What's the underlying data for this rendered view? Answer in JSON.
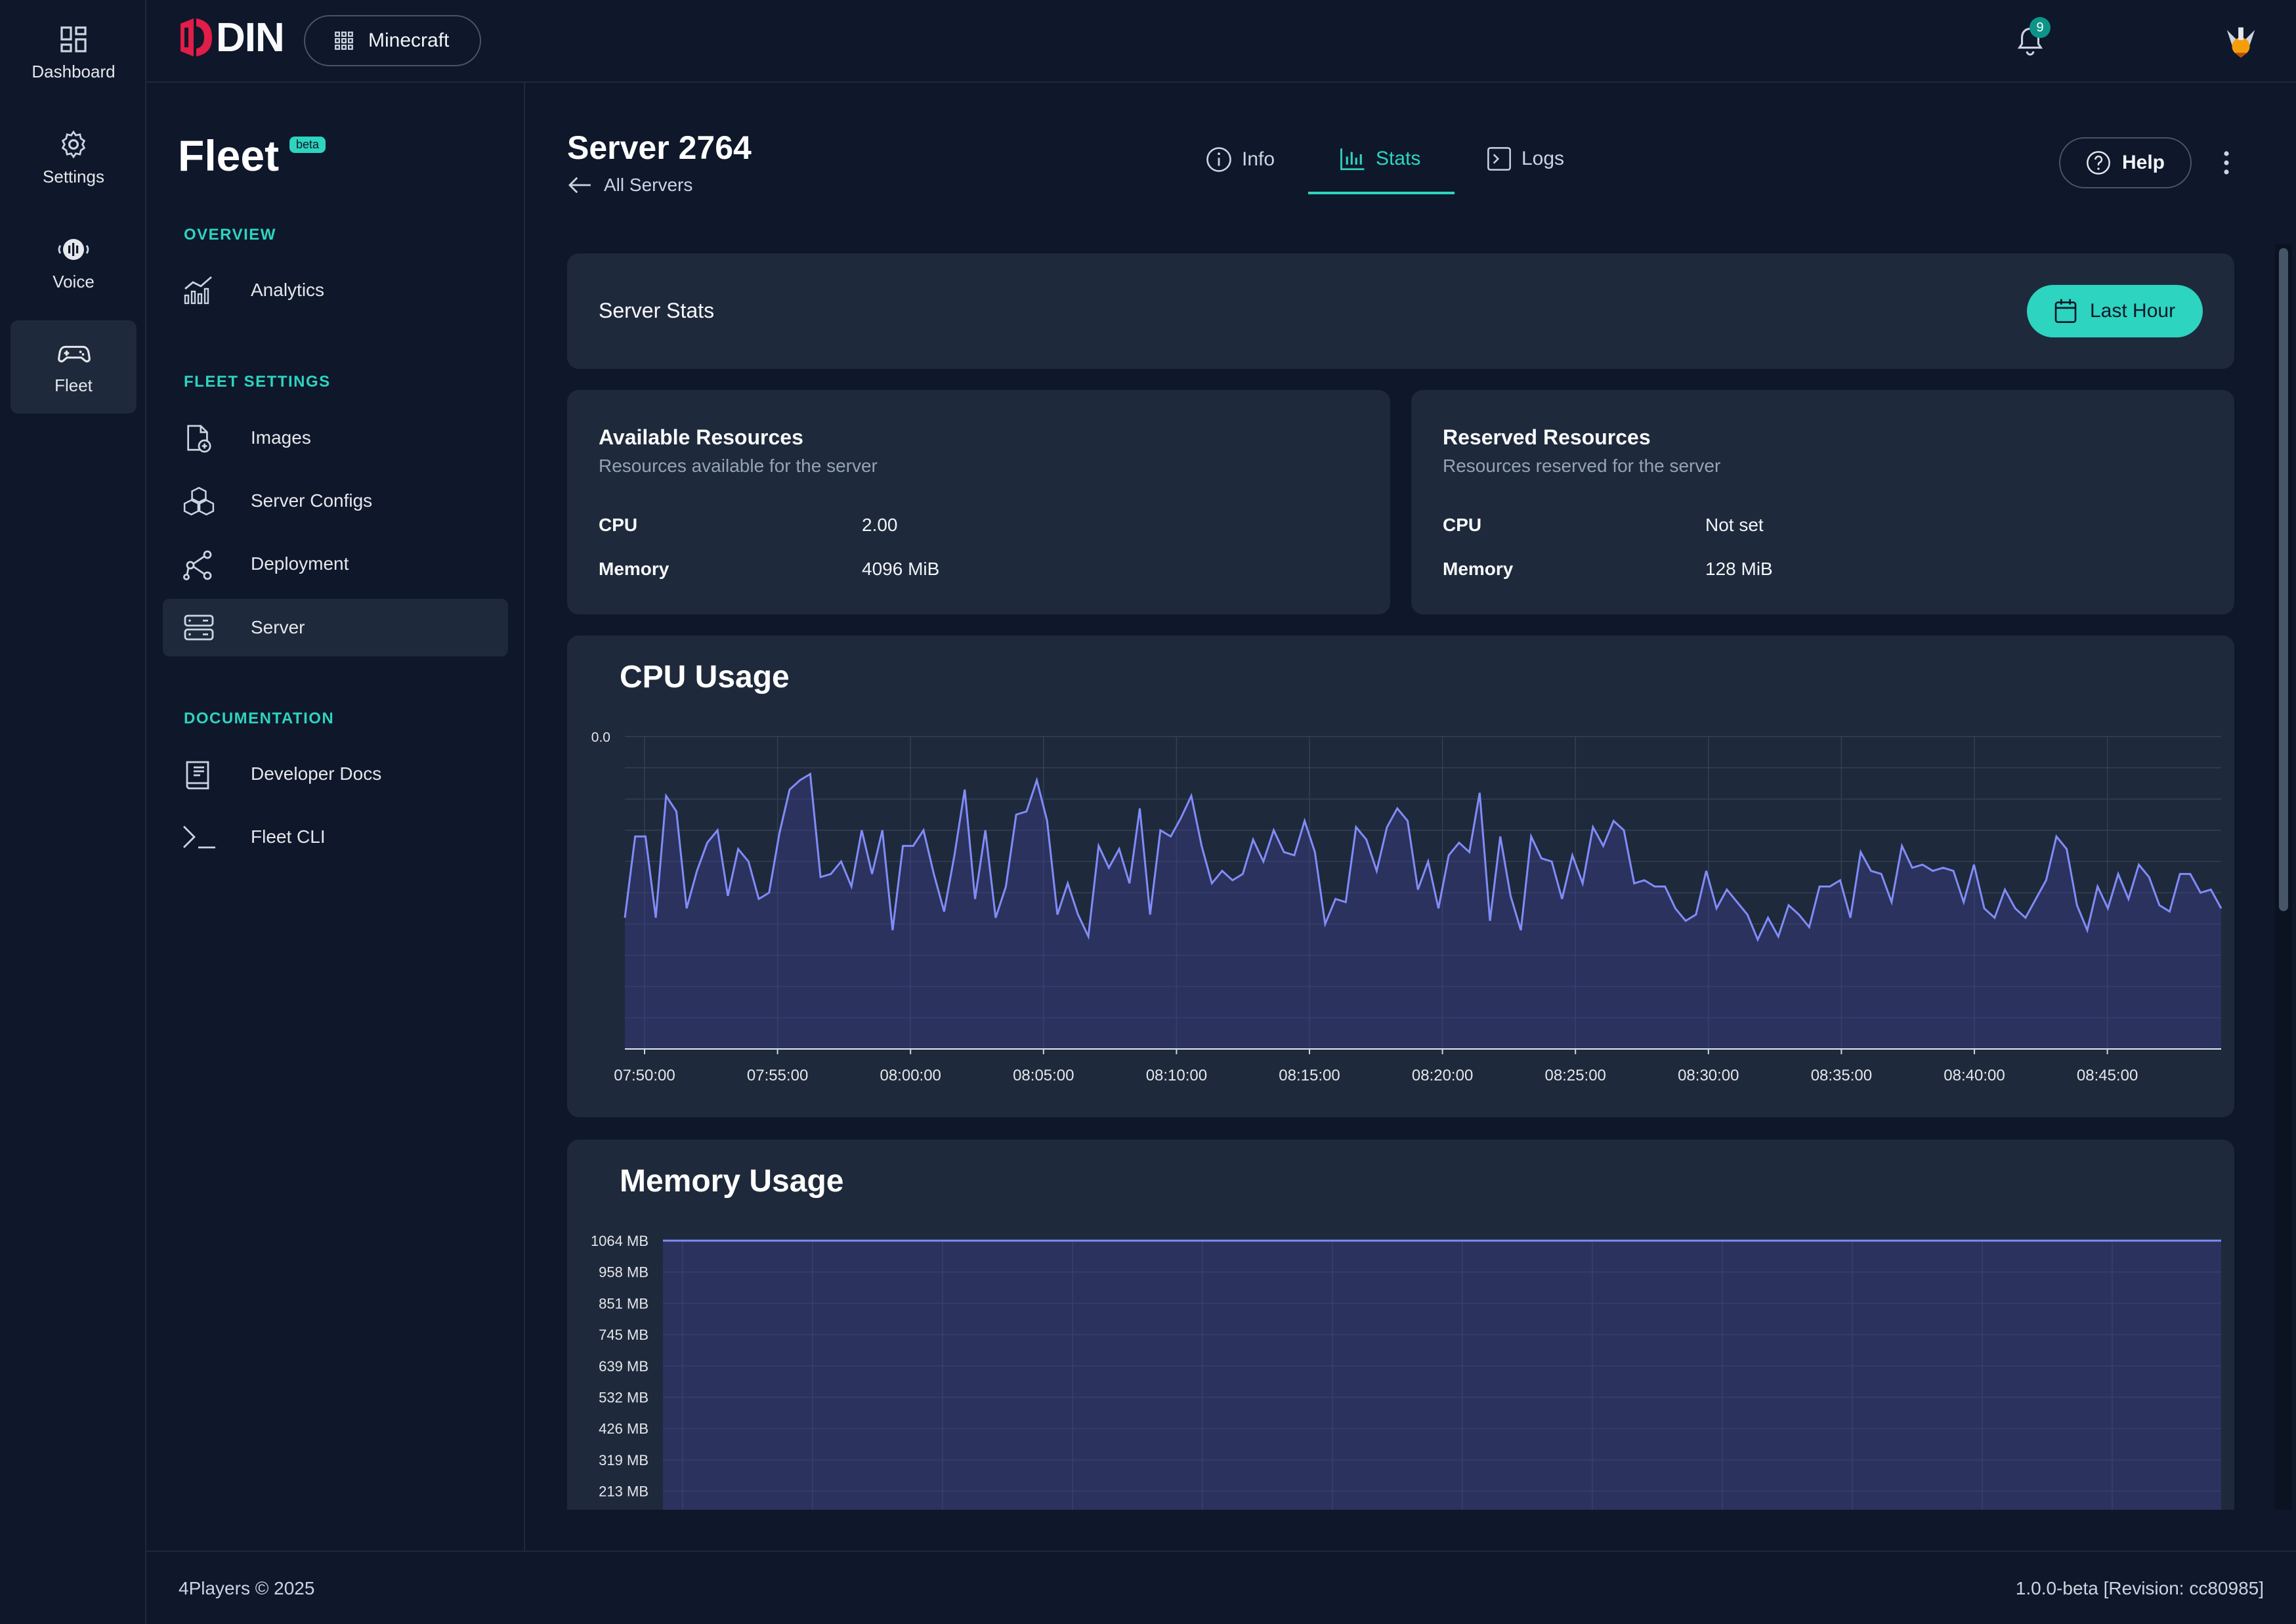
{
  "rail": {
    "items": [
      {
        "label": "Dashboard",
        "icon": "dashboard-icon"
      },
      {
        "label": "Settings",
        "icon": "gear-icon"
      },
      {
        "label": "Voice",
        "icon": "voice-icon"
      },
      {
        "label": "Fleet",
        "icon": "gamepad-icon",
        "active": true
      }
    ]
  },
  "topbar": {
    "logo_text": "DIN",
    "app_name": "Minecraft",
    "notification_count": "9"
  },
  "sidebar": {
    "title": "Fleet",
    "badge": "beta",
    "sections": {
      "overview": "OVERVIEW",
      "fleet_settings": "FLEET SETTINGS",
      "documentation": "DOCUMENTATION"
    },
    "items": {
      "analytics": "Analytics",
      "images": "Images",
      "server_configs": "Server Configs",
      "deployment": "Deployment",
      "server": "Server",
      "developer_docs": "Developer Docs",
      "fleet_cli": "Fleet CLI"
    }
  },
  "header": {
    "title": "Server 2764",
    "back_label": "All Servers",
    "tabs": {
      "info": "Info",
      "stats": "Stats",
      "logs": "Logs"
    },
    "active_tab": "Stats",
    "help_label": "Help"
  },
  "stats_card": {
    "title": "Server Stats",
    "range_label": "Last Hour"
  },
  "available": {
    "title": "Available Resources",
    "subtitle": "Resources available for the server",
    "cpu_label": "CPU",
    "cpu_value": "2.00",
    "memory_label": "Memory",
    "memory_value": "4096 MiB"
  },
  "reserved": {
    "title": "Reserved Resources",
    "subtitle": "Resources reserved for the server",
    "cpu_label": "CPU",
    "cpu_value": "Not set",
    "memory_label": "Memory",
    "memory_value": "128 MiB"
  },
  "colors": {
    "accent": "#2dd4bf",
    "series_line": "#818cf8",
    "series_fill": "#3b3f8a"
  },
  "chart_data": [
    {
      "type": "area",
      "title": "CPU Usage",
      "x_ticks": [
        "07:50:00",
        "07:55:00",
        "08:00:00",
        "08:05:00",
        "08:10:00",
        "08:15:00",
        "08:20:00",
        "08:25:00",
        "08:30:00",
        "08:35:00",
        "08:40:00",
        "08:45:00"
      ],
      "y_ticks": [
        "0.0"
      ],
      "grid": true,
      "values": [
        0.58,
        0.32,
        0.32,
        0.58,
        0.19,
        0.24,
        0.55,
        0.43,
        0.34,
        0.3,
        0.51,
        0.36,
        0.4,
        0.52,
        0.5,
        0.31,
        0.17,
        0.14,
        0.12,
        0.45,
        0.44,
        0.4,
        0.48,
        0.3,
        0.44,
        0.3,
        0.62,
        0.35,
        0.35,
        0.3,
        0.44,
        0.56,
        0.38,
        0.17,
        0.52,
        0.3,
        0.58,
        0.48,
        0.25,
        0.24,
        0.14,
        0.27,
        0.57,
        0.47,
        0.57,
        0.64,
        0.35,
        0.42,
        0.36,
        0.47,
        0.23,
        0.57,
        0.3,
        0.32,
        0.26,
        0.19,
        0.35,
        0.47,
        0.43,
        0.46,
        0.44,
        0.33,
        0.4,
        0.3,
        0.37,
        0.38,
        0.27,
        0.37,
        0.6,
        0.52,
        0.53,
        0.29,
        0.33,
        0.43,
        0.29,
        0.23,
        0.27,
        0.49,
        0.4,
        0.55,
        0.38,
        0.34,
        0.37,
        0.18,
        0.59,
        0.32,
        0.51,
        0.62,
        0.32,
        0.39,
        0.4,
        0.52,
        0.38,
        0.47,
        0.29,
        0.35,
        0.27,
        0.3,
        0.47,
        0.46,
        0.48,
        0.48,
        0.55,
        0.59,
        0.57,
        0.43,
        0.55,
        0.49,
        0.53,
        0.57,
        0.65,
        0.58,
        0.64,
        0.54,
        0.57,
        0.61,
        0.48,
        0.48,
        0.46,
        0.58,
        0.37,
        0.43,
        0.44,
        0.53,
        0.35,
        0.42,
        0.41,
        0.43,
        0.42,
        0.43,
        0.53,
        0.41,
        0.55,
        0.58,
        0.49,
        0.55,
        0.58,
        0.52,
        0.46,
        0.32,
        0.36,
        0.54,
        0.62,
        0.48,
        0.55,
        0.44,
        0.52,
        0.41,
        0.45,
        0.54,
        0.56,
        0.44,
        0.44,
        0.5,
        0.49,
        0.55
      ]
    },
    {
      "type": "area",
      "title": "Memory Usage",
      "y_ticks": [
        "1064 MB",
        "958 MB",
        "851 MB",
        "745 MB",
        "639 MB",
        "532 MB",
        "426 MB",
        "319 MB",
        "213 MB"
      ],
      "grid": true,
      "values": [
        1064,
        1064
      ]
    }
  ],
  "footer": {
    "copyright": "4Players © 2025",
    "version": "1.0.0-beta [Revision: cc80985]"
  }
}
